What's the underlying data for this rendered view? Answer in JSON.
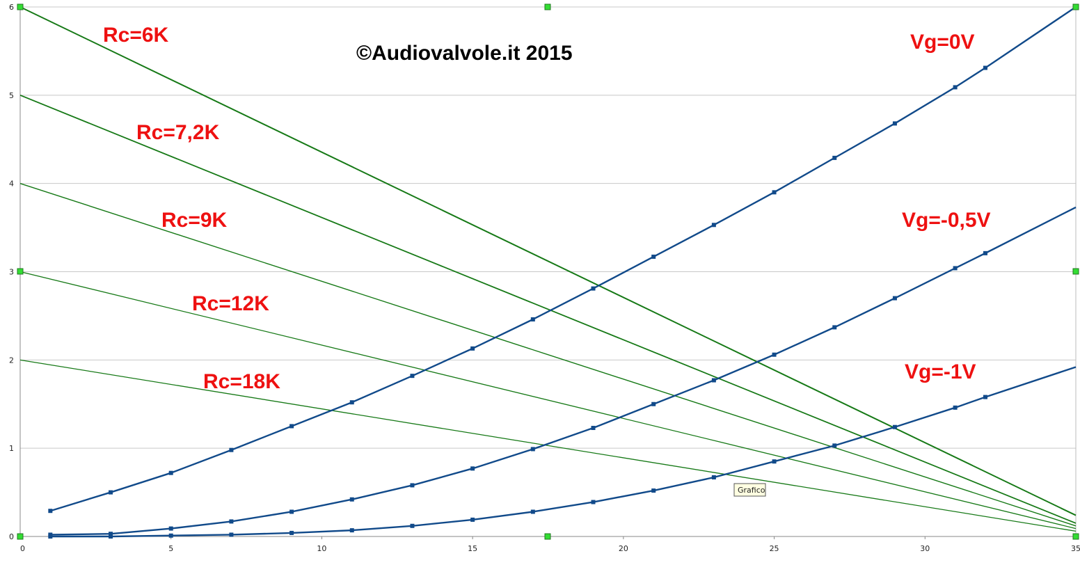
{
  "chart_data": {
    "type": "line",
    "title": "©Audiovalvole.it 2015",
    "xlim": [
      0,
      35
    ],
    "ylim": [
      0,
      6
    ],
    "x_ticks": [
      0,
      5,
      10,
      15,
      20,
      25,
      30,
      35
    ],
    "y_ticks": [
      0,
      1,
      2,
      3,
      4,
      5,
      6
    ],
    "grid": "horizontal",
    "load_lines": [
      {
        "label": "Rc=6K",
        "x": [
          0,
          35
        ],
        "y": [
          6,
          0.24
        ]
      },
      {
        "label": "Rc=7,2K",
        "x": [
          0,
          35
        ],
        "y": [
          5,
          0.15
        ]
      },
      {
        "label": "Rc=9K",
        "x": [
          0,
          35
        ],
        "y": [
          4,
          0.12
        ]
      },
      {
        "label": "Rc=12K",
        "x": [
          0,
          35
        ],
        "y": [
          3,
          0.09
        ]
      },
      {
        "label": "Rc=18K",
        "x": [
          0,
          35
        ],
        "y": [
          2,
          0.06
        ]
      }
    ],
    "curves": [
      {
        "label": "Vg=0V",
        "x": [
          1,
          3,
          5,
          7,
          9,
          11,
          13,
          15,
          17,
          19,
          21,
          23,
          25,
          27,
          29,
          31,
          32,
          35
        ],
        "y": [
          0.29,
          0.5,
          0.72,
          0.98,
          1.25,
          1.52,
          1.82,
          2.13,
          2.46,
          2.81,
          3.17,
          3.53,
          3.9,
          4.29,
          4.68,
          5.09,
          5.31,
          6.0
        ]
      },
      {
        "label": "Vg=-0,5V",
        "x": [
          1,
          3,
          5,
          7,
          9,
          11,
          13,
          15,
          17,
          19,
          21,
          23,
          25,
          27,
          29,
          31,
          32,
          35
        ],
        "y": [
          0.02,
          0.03,
          0.09,
          0.17,
          0.28,
          0.42,
          0.58,
          0.77,
          0.99,
          1.23,
          1.5,
          1.77,
          2.06,
          2.37,
          2.7,
          3.04,
          3.21,
          3.73
        ]
      },
      {
        "label": "Vg=-1V",
        "x": [
          1,
          3,
          5,
          7,
          9,
          11,
          13,
          15,
          17,
          19,
          21,
          23,
          25,
          27,
          29,
          31,
          32,
          35
        ],
        "y": [
          0.0,
          0.0,
          0.01,
          0.02,
          0.04,
          0.07,
          0.12,
          0.19,
          0.28,
          0.39,
          0.52,
          0.67,
          0.85,
          1.03,
          1.24,
          1.46,
          1.58,
          1.92
        ]
      }
    ],
    "colors": {
      "load_line": "#167916",
      "curve": "#114a8a",
      "grid": "#c8c8c8",
      "annotation": "#ee1111",
      "handle": "#33dd33"
    },
    "tooltip": "Grafico"
  }
}
